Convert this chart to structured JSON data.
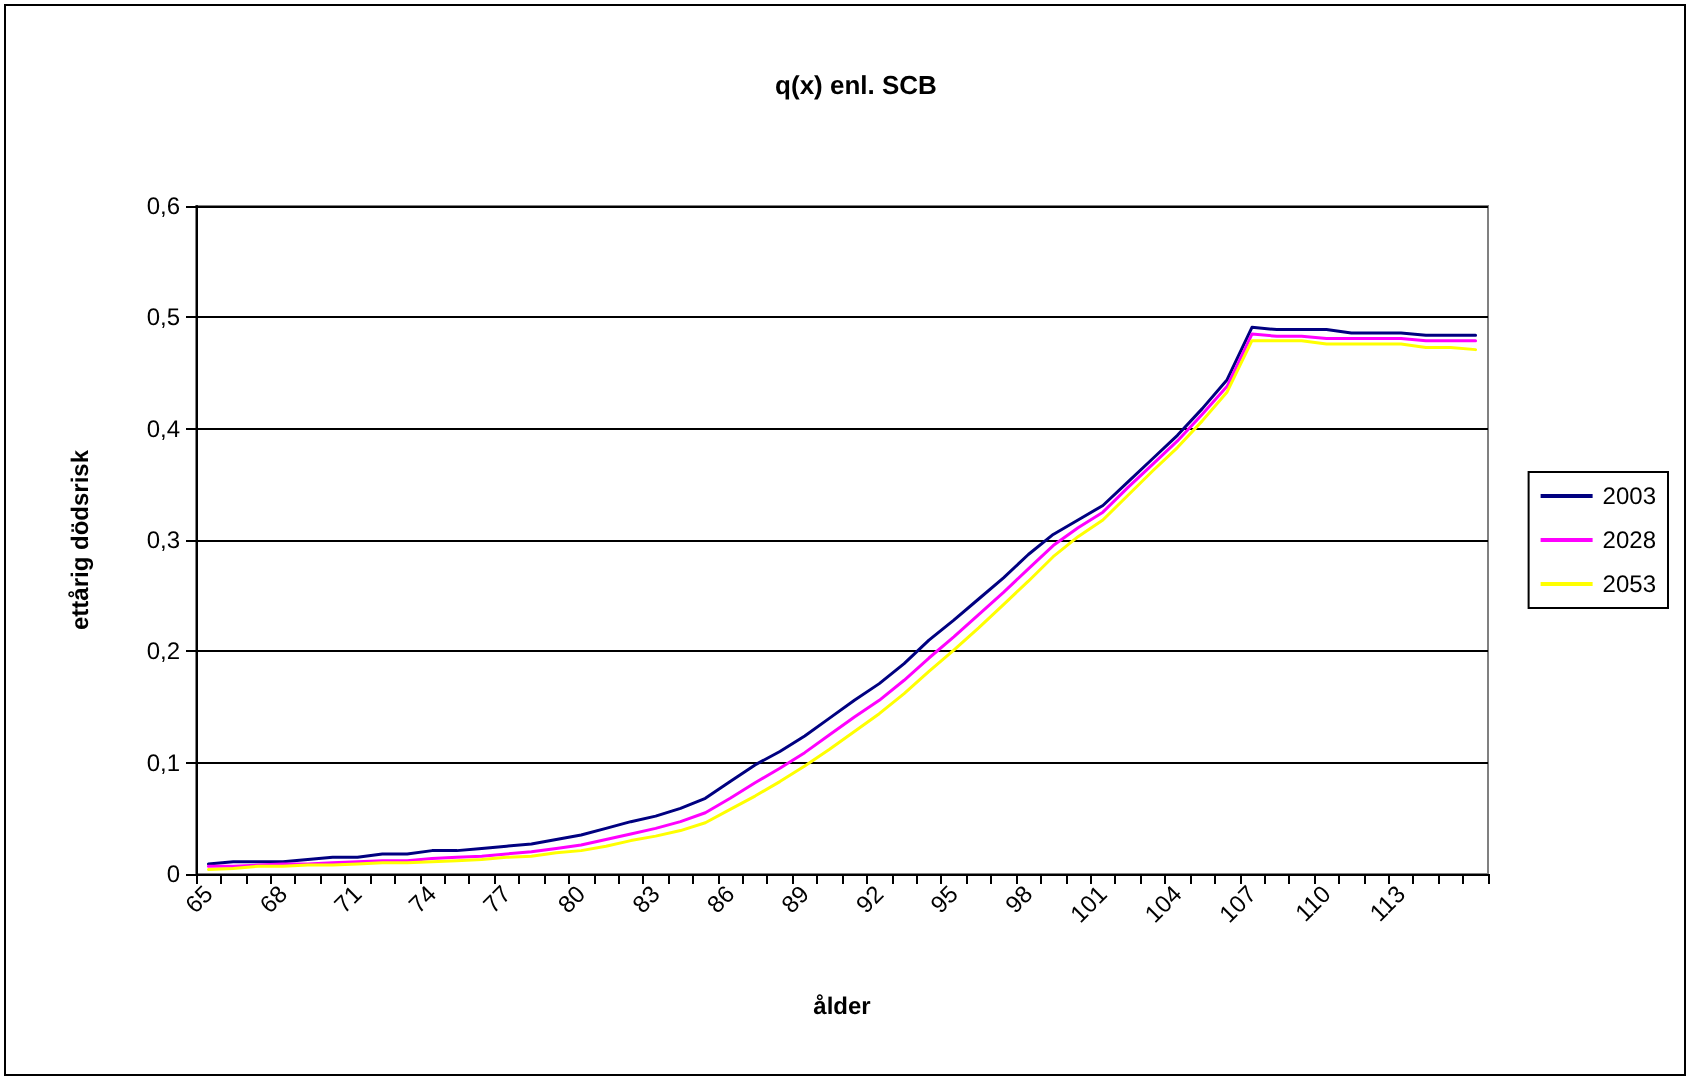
{
  "chart_data": {
    "type": "line",
    "title": "q(x) enl. SCB",
    "xlabel": "ålder",
    "ylabel": "ettårig dödsrisk",
    "categories": [
      "65",
      null,
      null,
      "68",
      null,
      null,
      "71",
      null,
      null,
      "74",
      null,
      null,
      "77",
      null,
      null,
      "80",
      null,
      null,
      "83",
      null,
      null,
      "86",
      null,
      null,
      "89",
      null,
      null,
      "92",
      null,
      null,
      "95",
      null,
      null,
      "98",
      null,
      null,
      "101",
      null,
      null,
      "104",
      null,
      null,
      "107",
      null,
      null,
      "110",
      null,
      null,
      "113",
      null,
      null,
      null
    ],
    "series": [
      {
        "name": "2003",
        "color": "#000080",
        "values": [
          0.009,
          0.011,
          0.011,
          0.011,
          0.013,
          0.015,
          0.015,
          0.018,
          0.018,
          0.021,
          0.021,
          0.023,
          0.025,
          0.027,
          0.031,
          0.035,
          0.041,
          0.047,
          0.052,
          0.059,
          0.068,
          0.083,
          0.098,
          0.11,
          0.124,
          0.14,
          0.156,
          0.171,
          0.189,
          0.21,
          0.228,
          0.247,
          0.266,
          0.287,
          0.305,
          0.318,
          0.331,
          0.352,
          0.373,
          0.394,
          0.418,
          0.444,
          0.491,
          0.489,
          0.489,
          0.489,
          0.486,
          0.486,
          0.486,
          0.484,
          0.484,
          0.484
        ]
      },
      {
        "name": "2028",
        "color": "#ff00ff",
        "values": [
          0.007,
          0.007,
          0.008,
          0.009,
          0.009,
          0.01,
          0.011,
          0.012,
          0.012,
          0.014,
          0.015,
          0.016,
          0.018,
          0.02,
          0.023,
          0.026,
          0.031,
          0.036,
          0.041,
          0.047,
          0.055,
          0.068,
          0.082,
          0.095,
          0.109,
          0.125,
          0.141,
          0.156,
          0.174,
          0.194,
          0.213,
          0.233,
          0.253,
          0.274,
          0.295,
          0.311,
          0.325,
          0.347,
          0.368,
          0.389,
          0.413,
          0.438,
          0.485,
          0.483,
          0.483,
          0.481,
          0.481,
          0.481,
          0.481,
          0.479,
          0.479,
          0.479
        ]
      },
      {
        "name": "2053",
        "color": "#ffff00",
        "values": [
          0.004,
          0.005,
          0.007,
          0.007,
          0.008,
          0.008,
          0.009,
          0.01,
          0.01,
          0.011,
          0.012,
          0.013,
          0.015,
          0.016,
          0.019,
          0.021,
          0.025,
          0.03,
          0.034,
          0.039,
          0.046,
          0.058,
          0.07,
          0.083,
          0.097,
          0.112,
          0.128,
          0.144,
          0.162,
          0.182,
          0.201,
          0.221,
          0.242,
          0.263,
          0.285,
          0.303,
          0.318,
          0.34,
          0.362,
          0.383,
          0.407,
          0.433,
          0.479,
          0.479,
          0.479,
          0.476,
          0.476,
          0.476,
          0.476,
          0.473,
          0.473,
          0.471
        ]
      }
    ],
    "ylim": [
      0,
      0.6
    ],
    "yticks": [
      {
        "value": 0,
        "label": "0"
      },
      {
        "value": 0.1,
        "label": "0,1"
      },
      {
        "value": 0.2,
        "label": "0,2"
      },
      {
        "value": 0.3,
        "label": "0,3"
      },
      {
        "value": 0.4,
        "label": "0,4"
      },
      {
        "value": 0.5,
        "label": "0,5"
      },
      {
        "value": 0.6,
        "label": "0,6"
      }
    ],
    "grid": "y",
    "legend": "right",
    "marker": "none",
    "line_style": "solid"
  }
}
